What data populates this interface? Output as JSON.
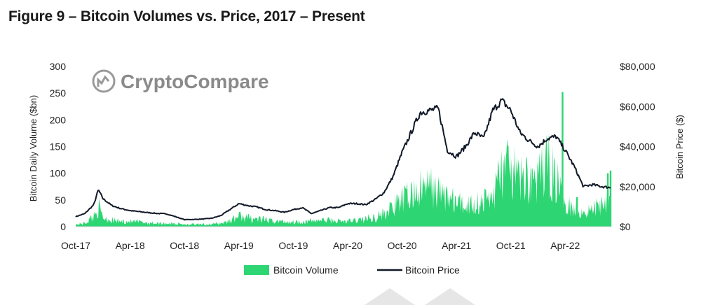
{
  "figure": {
    "title": "Figure 9 – Bitcoin Volumes vs. Price, 2017 – Present",
    "watermark": "CryptoCompare"
  },
  "chart_data": {
    "type": "area",
    "x_ticks": [
      "Oct-17",
      "Apr-18",
      "Oct-18",
      "Apr-19",
      "Oct-19",
      "Apr-20",
      "Oct-20",
      "Apr-21",
      "Oct-21",
      "Apr-22"
    ],
    "y_left": {
      "label": "Bitcoin Daily Volume ($bn)",
      "range": [
        0,
        300
      ],
      "ticks": [
        "0",
        "50",
        "100",
        "150",
        "200",
        "250",
        "300"
      ]
    },
    "y_right": {
      "label": "Bitcoin Price ($)",
      "range": [
        0,
        80000
      ],
      "ticks": [
        "$0",
        "$20,000",
        "$40,000",
        "$60,000",
        "$80,000"
      ]
    },
    "colors": {
      "volume": "#2ed573",
      "price": "#111827"
    },
    "legend_position": "bottom",
    "x_domain_months": [
      0,
      59
    ],
    "series": [
      {
        "name": "Bitcoin Volume",
        "kind": "area",
        "axis": "left",
        "points": [
          [
            0,
            5
          ],
          [
            1,
            8
          ],
          [
            2,
            25
          ],
          [
            2.5,
            45
          ],
          [
            3,
            22
          ],
          [
            4,
            15
          ],
          [
            5,
            12
          ],
          [
            6,
            12
          ],
          [
            7,
            11
          ],
          [
            8,
            9
          ],
          [
            9,
            8
          ],
          [
            10,
            8
          ],
          [
            11,
            7
          ],
          [
            12,
            6
          ],
          [
            13,
            5
          ],
          [
            14,
            5
          ],
          [
            15,
            6
          ],
          [
            16,
            8
          ],
          [
            17,
            14
          ],
          [
            18,
            25
          ],
          [
            19,
            20
          ],
          [
            20,
            18
          ],
          [
            21,
            15
          ],
          [
            22,
            13
          ],
          [
            23,
            12
          ],
          [
            24,
            11
          ],
          [
            25,
            12
          ],
          [
            26,
            13
          ],
          [
            27,
            15
          ],
          [
            28,
            15
          ],
          [
            29,
            13
          ],
          [
            30,
            12
          ],
          [
            31,
            15
          ],
          [
            32,
            18
          ],
          [
            33,
            22
          ],
          [
            34,
            30
          ],
          [
            35,
            45
          ],
          [
            36,
            60
          ],
          [
            37,
            75
          ],
          [
            38,
            85
          ],
          [
            39,
            95
          ],
          [
            40,
            80
          ],
          [
            41,
            70
          ],
          [
            42,
            55
          ],
          [
            43,
            50
          ],
          [
            44,
            55
          ],
          [
            45,
            60
          ],
          [
            46,
            70
          ],
          [
            47,
            135
          ],
          [
            48,
            130
          ],
          [
            49,
            110
          ],
          [
            50,
            115
          ],
          [
            51,
            105
          ],
          [
            52,
            150
          ],
          [
            53,
            110
          ],
          [
            54,
            65
          ],
          [
            55,
            40
          ],
          [
            56,
            35
          ],
          [
            57,
            40
          ],
          [
            58,
            55
          ],
          [
            59,
            75
          ]
        ],
        "spikes": [
          [
            53.7,
            252
          ],
          [
            55.3,
            55
          ],
          [
            57.5,
            45
          ],
          [
            58.7,
            100
          ],
          [
            59,
            105
          ]
        ]
      },
      {
        "name": "Bitcoin Price",
        "kind": "line",
        "axis": "right",
        "points": [
          [
            0,
            5000
          ],
          [
            1,
            6500
          ],
          [
            2,
            11000
          ],
          [
            2.5,
            18500
          ],
          [
            3,
            14000
          ],
          [
            4,
            10500
          ],
          [
            5,
            9000
          ],
          [
            6,
            8000
          ],
          [
            7,
            7500
          ],
          [
            8,
            7000
          ],
          [
            9,
            6600
          ],
          [
            10,
            6400
          ],
          [
            11,
            5000
          ],
          [
            12,
            3500
          ],
          [
            13,
            3600
          ],
          [
            14,
            3800
          ],
          [
            15,
            4200
          ],
          [
            16,
            5500
          ],
          [
            17,
            8500
          ],
          [
            18,
            11500
          ],
          [
            19,
            10500
          ],
          [
            20,
            9800
          ],
          [
            21,
            8500
          ],
          [
            22,
            8000
          ],
          [
            23,
            7200
          ],
          [
            24,
            8500
          ],
          [
            25,
            9500
          ],
          [
            26,
            6500
          ],
          [
            27,
            8000
          ],
          [
            28,
            9500
          ],
          [
            29,
            9500
          ],
          [
            30,
            11500
          ],
          [
            31,
            11500
          ],
          [
            32,
            11000
          ],
          [
            33,
            13500
          ],
          [
            34,
            17000
          ],
          [
            35,
            25000
          ],
          [
            36,
            37000
          ],
          [
            37,
            47000
          ],
          [
            38,
            57000
          ],
          [
            39,
            58000
          ],
          [
            40,
            59000
          ],
          [
            41,
            38000
          ],
          [
            42,
            35000
          ],
          [
            43,
            40000
          ],
          [
            44,
            47000
          ],
          [
            45,
            44000
          ],
          [
            46,
            58000
          ],
          [
            47,
            63000
          ],
          [
            48,
            58000
          ],
          [
            49,
            47000
          ],
          [
            50,
            43000
          ],
          [
            51,
            40000
          ],
          [
            52,
            44000
          ],
          [
            53,
            45000
          ],
          [
            54,
            38000
          ],
          [
            55,
            30000
          ],
          [
            56,
            20000
          ],
          [
            57,
            21000
          ],
          [
            58,
            20000
          ],
          [
            59,
            19500
          ]
        ]
      }
    ]
  }
}
